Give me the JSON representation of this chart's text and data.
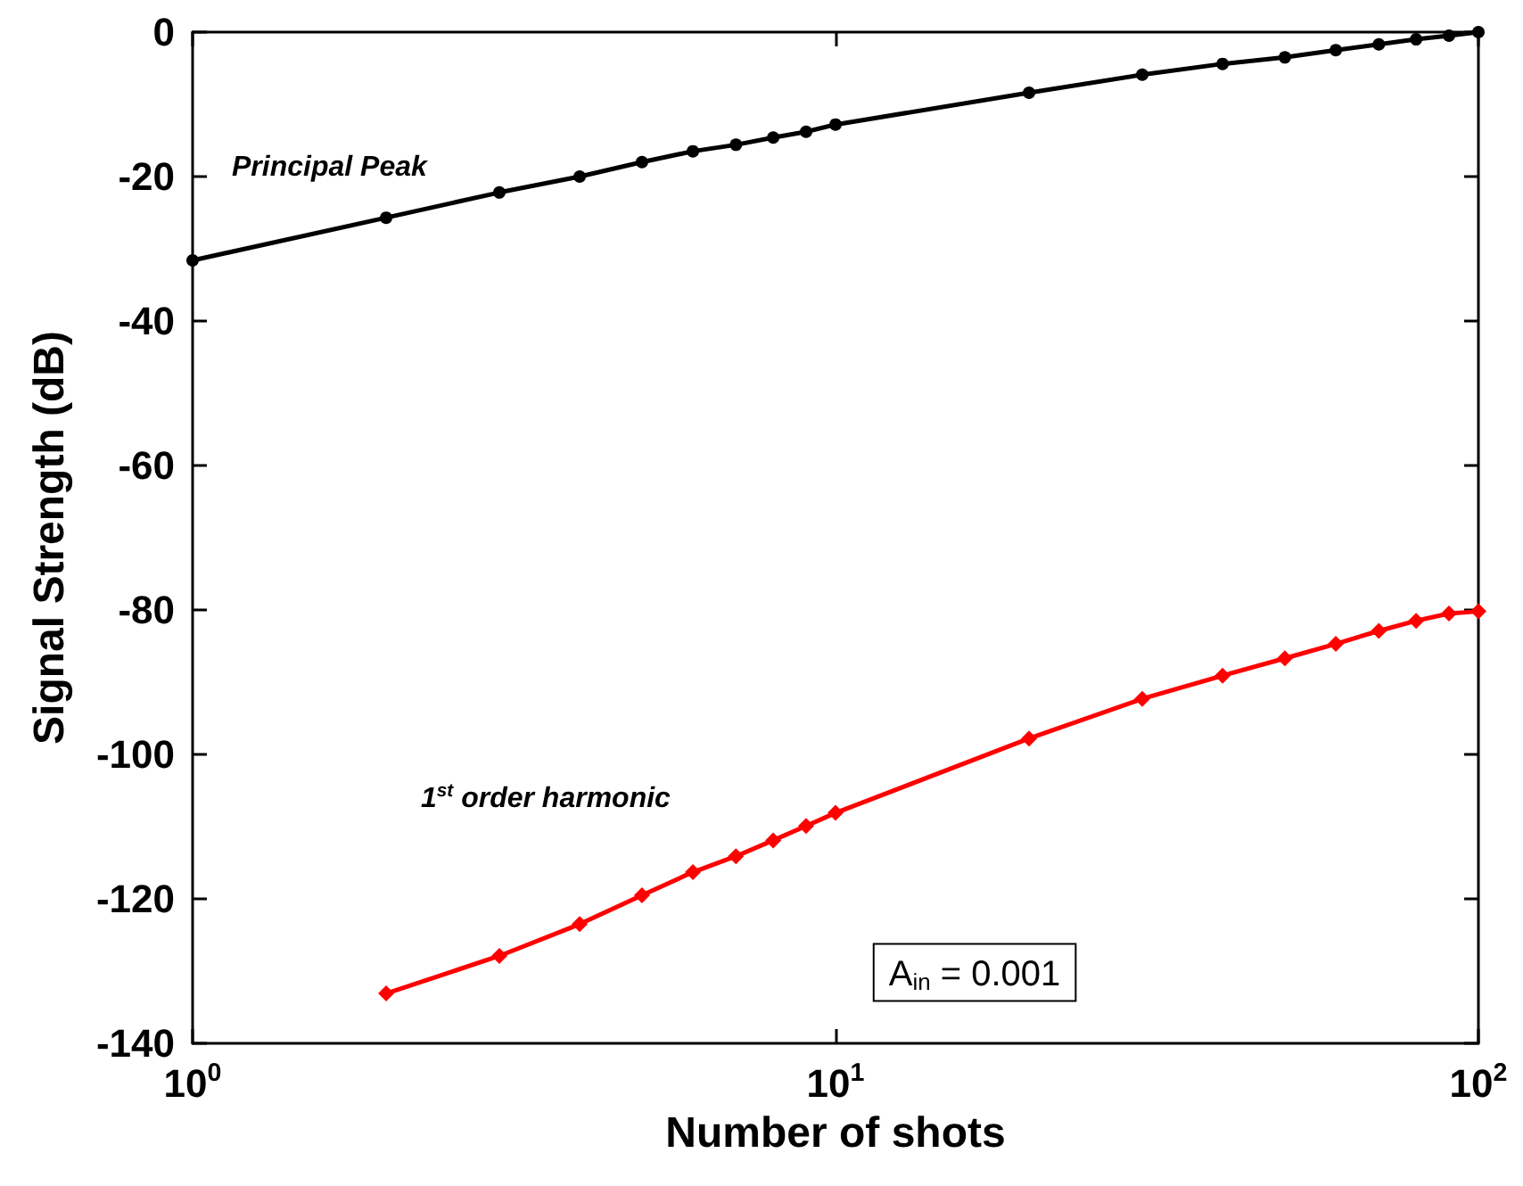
{
  "chart_data": {
    "type": "line",
    "xlabel": "Number of shots",
    "ylabel": "Signal Strength (dB)",
    "log": "x",
    "grid": false,
    "xlim": [
      1,
      100
    ],
    "xticks": [
      {
        "value": 1,
        "label": "10$^{0}$"
      },
      {
        "value": 10,
        "label": "10$^{1}$"
      },
      {
        "value": 100,
        "label": "10$^{2}$"
      }
    ],
    "ylim": [
      -140,
      0
    ],
    "yticks": [
      -140,
      -120,
      -100,
      -80,
      -60,
      -40,
      -20,
      0
    ],
    "series": [
      {
        "color": "#000000",
        "marker": "circle",
        "x": [
          1,
          2,
          3,
          4,
          5,
          6,
          7,
          8,
          9,
          10,
          20,
          30,
          40,
          50,
          60,
          70,
          80,
          90,
          100
        ],
        "values": [
          -31.6,
          -25.7,
          -22.2,
          -20.0,
          -18.0,
          -16.5,
          -15.6,
          -14.6,
          -13.8,
          -12.8,
          -8.4,
          -5.9,
          -4.4,
          -3.5,
          -2.5,
          -1.7,
          -1.0,
          -0.5,
          0
        ]
      },
      {
        "color": "#ff0000",
        "marker": "diamond",
        "x": [
          2,
          3,
          4,
          5,
          6,
          7,
          8,
          9,
          10,
          20,
          30,
          40,
          50,
          60,
          70,
          80,
          90,
          100
        ],
        "values": [
          -133.1,
          -127.9,
          -123.5,
          -119.5,
          -116.3,
          -114.1,
          -111.9,
          -109.9,
          -108.1,
          -97.8,
          -92.3,
          -89.1,
          -86.7,
          -84.7,
          -82.9,
          -81.5,
          -80.5,
          -80.2
        ]
      }
    ],
    "annotations": [
      "Principal Peak",
      "1$^{st}$ order harmonic",
      "A$_{in}$ = 0.001"
    ]
  }
}
